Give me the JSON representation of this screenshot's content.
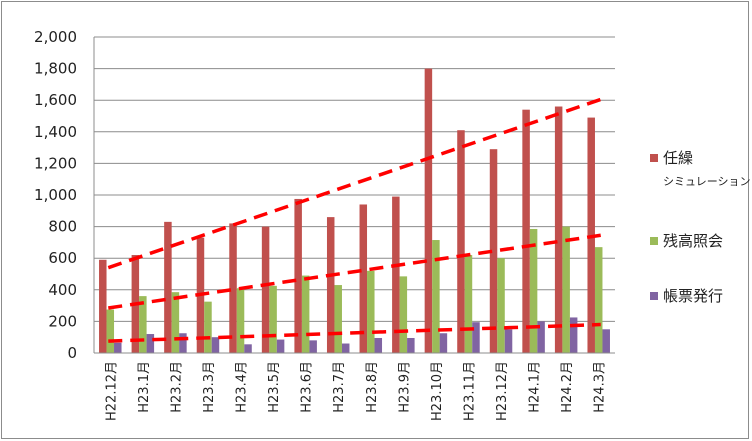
{
  "chart_data": {
    "type": "bar",
    "categories": [
      "H22.12月",
      "H23.1月",
      "H23.2月",
      "H23.3月",
      "H23.4月",
      "H23.5月",
      "H23.6月",
      "H23.7月",
      "H23.8月",
      "H23.9月",
      "H23.10月",
      "H23.11月",
      "H23.12月",
      "H24.1月",
      "H24.2月",
      "H24.3月"
    ],
    "series": [
      {
        "name": "任繰",
        "subname": "シミュレーション",
        "color": "#c0504d",
        "values": [
          590,
          620,
          830,
          730,
          820,
          800,
          975,
          860,
          940,
          990,
          1800,
          1410,
          1290,
          1540,
          1560,
          1490
        ]
      },
      {
        "name": "残高照会",
        "color": "#9bbb59",
        "values": [
          275,
          360,
          385,
          325,
          410,
          425,
          490,
          430,
          520,
          485,
          715,
          620,
          600,
          785,
          800,
          670
        ]
      },
      {
        "name": "帳票発行",
        "color": "#8064a2",
        "values": [
          65,
          120,
          125,
          100,
          55,
          85,
          80,
          60,
          95,
          95,
          125,
          195,
          150,
          200,
          225,
          150
        ]
      }
    ],
    "trendlines": [
      {
        "series": "任繰",
        "start": 540,
        "end": 1605,
        "color": "#ff0000"
      },
      {
        "series": "残高照会",
        "start": 285,
        "end": 745,
        "color": "#ff0000"
      },
      {
        "series": "帳票発行",
        "start": 75,
        "end": 180,
        "color": "#ff0000"
      }
    ],
    "ylim": [
      0,
      2000
    ],
    "yticks": [
      "0",
      "200",
      "400",
      "600",
      "800",
      "1,000",
      "1,200",
      "1,400",
      "1,600",
      "1,800",
      "2,000"
    ],
    "grid": true,
    "legend": "right"
  }
}
